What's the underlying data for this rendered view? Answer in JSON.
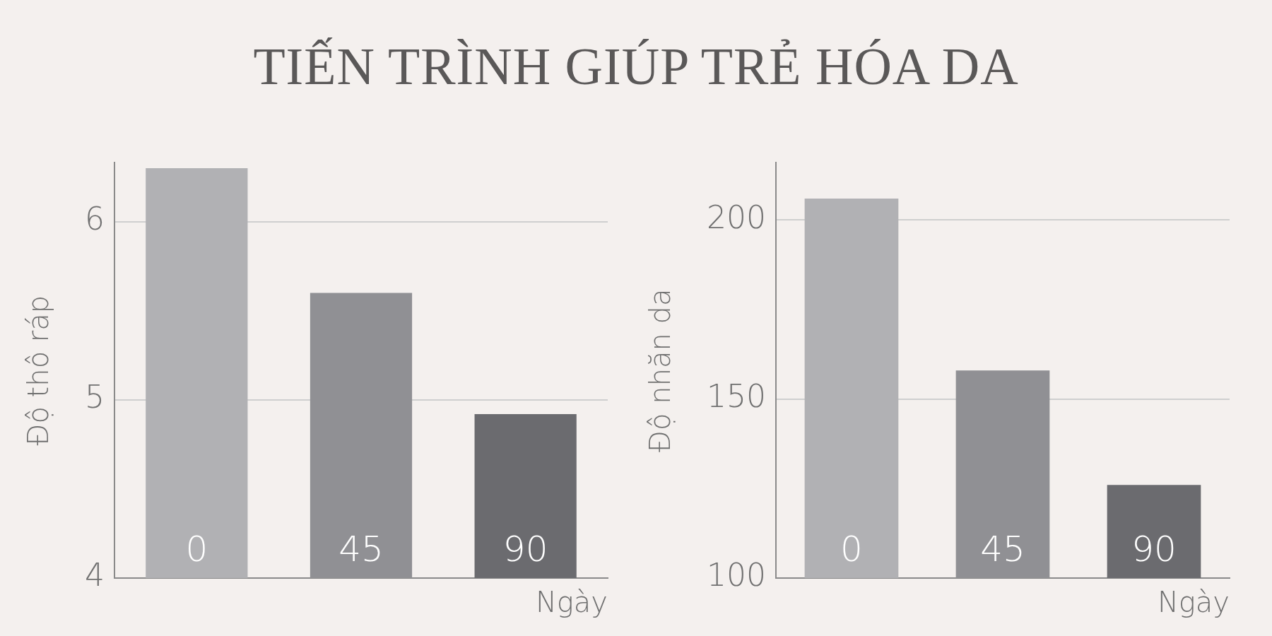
{
  "chart_data": [
    {
      "type": "bar",
      "title": "TIẾN TRÌNH GIÚP TRẺ HÓA DA",
      "categories": [
        "0",
        "45",
        "90"
      ],
      "values": [
        6.3,
        5.6,
        4.92
      ],
      "colors": [
        "#b1b1b4",
        "#909094",
        "#6b6b6f"
      ],
      "xlabel": "Ngày",
      "ylabel": "Độ thô ráp",
      "ylim": [
        4,
        6.33
      ],
      "yticks": [
        4,
        5,
        6
      ],
      "grid": "y",
      "legend": false
    },
    {
      "type": "bar",
      "categories": [
        "0",
        "45",
        "90"
      ],
      "values": [
        206,
        158,
        126
      ],
      "colors": [
        "#b1b1b4",
        "#909094",
        "#6b6b6f"
      ],
      "xlabel": "Ngày",
      "ylabel": "Độ nhăn da",
      "ylim": [
        100,
        216
      ],
      "yticks": [
        100,
        150,
        200
      ],
      "grid": "y",
      "legend": false
    }
  ]
}
